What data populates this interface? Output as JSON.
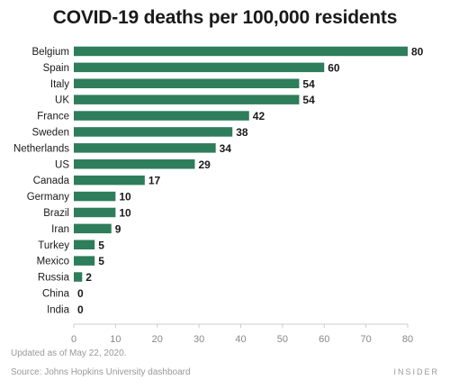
{
  "chart_data": {
    "type": "bar",
    "orientation": "horizontal",
    "title": "COVID-19 deaths per 100,000 residents",
    "categories": [
      "Belgium",
      "Spain",
      "Italy",
      "UK",
      "France",
      "Sweden",
      "Netherlands",
      "US",
      "Canada",
      "Germany",
      "Brazil",
      "Iran",
      "Turkey",
      "Mexico",
      "Russia",
      "China",
      "India"
    ],
    "values": [
      80,
      60,
      54,
      54,
      42,
      38,
      34,
      29,
      17,
      10,
      10,
      9,
      5,
      5,
      2,
      0,
      0
    ],
    "xlim": [
      0,
      80
    ],
    "xticks": [
      0,
      10,
      20,
      30,
      40,
      50,
      60,
      70,
      80
    ],
    "bar_color": "#2e7d5b",
    "grid": false
  },
  "footer": {
    "updated": "Updated as of May 22, 2020.",
    "source": "Source: Johns Hopkins University dashboard",
    "brand": "INSIDER"
  }
}
